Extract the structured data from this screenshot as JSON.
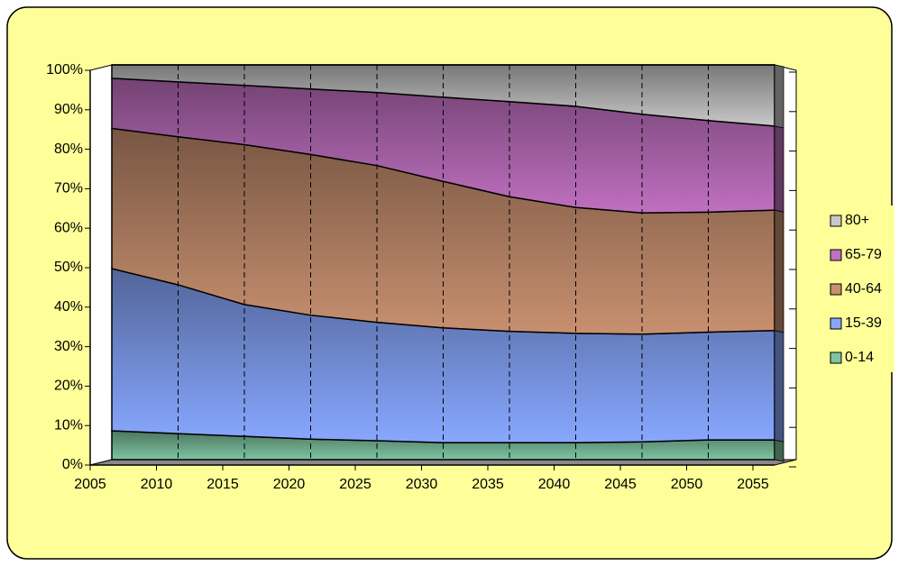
{
  "chart_data": {
    "type": "area",
    "x": [
      2005,
      2010,
      2015,
      2020,
      2025,
      2030,
      2035,
      2040,
      2045,
      2050,
      2055
    ],
    "xlim": [
      2005,
      2055
    ],
    "xticks": [
      2005,
      2010,
      2015,
      2020,
      2025,
      2030,
      2035,
      2040,
      2045,
      2050,
      2055
    ],
    "ylim": [
      0,
      100
    ],
    "yticks": [
      {
        "value": 0,
        "label": "0%"
      },
      {
        "value": 10,
        "label": "10%"
      },
      {
        "value": 20,
        "label": "20%"
      },
      {
        "value": 30,
        "label": "30%"
      },
      {
        "value": 40,
        "label": "40%"
      },
      {
        "value": 50,
        "label": "50%"
      },
      {
        "value": 60,
        "label": "60%"
      },
      {
        "value": 70,
        "label": "70%"
      },
      {
        "value": 80,
        "label": "80%"
      },
      {
        "value": 90,
        "label": "90%"
      },
      {
        "value": 100,
        "label": "100%"
      }
    ],
    "stacked": true,
    "grid": true,
    "legend": "right",
    "series": [
      {
        "name": "0-14",
        "color": "#7fc4a0",
        "values": [
          7.3,
          6.6,
          5.9,
          5.2,
          4.8,
          4.3,
          4.3,
          4.3,
          4.5,
          5,
          5
        ]
      },
      {
        "name": "15-39",
        "color": "#88a8ff",
        "values": [
          41.1,
          37.7,
          33.4,
          31.4,
          30,
          29.1,
          28.2,
          27.7,
          27.3,
          27.3,
          27.7
        ]
      },
      {
        "name": "40-64",
        "color": "#c89070",
        "values": [
          35.5,
          37.5,
          40.5,
          40.7,
          39.7,
          37.1,
          34.1,
          31.9,
          30.7,
          30.4,
          30.5
        ]
      },
      {
        "name": "65-79",
        "color": "#c070c0",
        "values": [
          12.7,
          13.9,
          15,
          16.6,
          18.5,
          21.3,
          24.1,
          25.6,
          25,
          23.2,
          21.3
        ]
      },
      {
        "name": "80+",
        "color": "#c8c8c8",
        "values": [
          3.4,
          4.3,
          5.2,
          6.1,
          7,
          8.2,
          9.3,
          10.5,
          12.5,
          14.1,
          15.5
        ]
      }
    ]
  }
}
